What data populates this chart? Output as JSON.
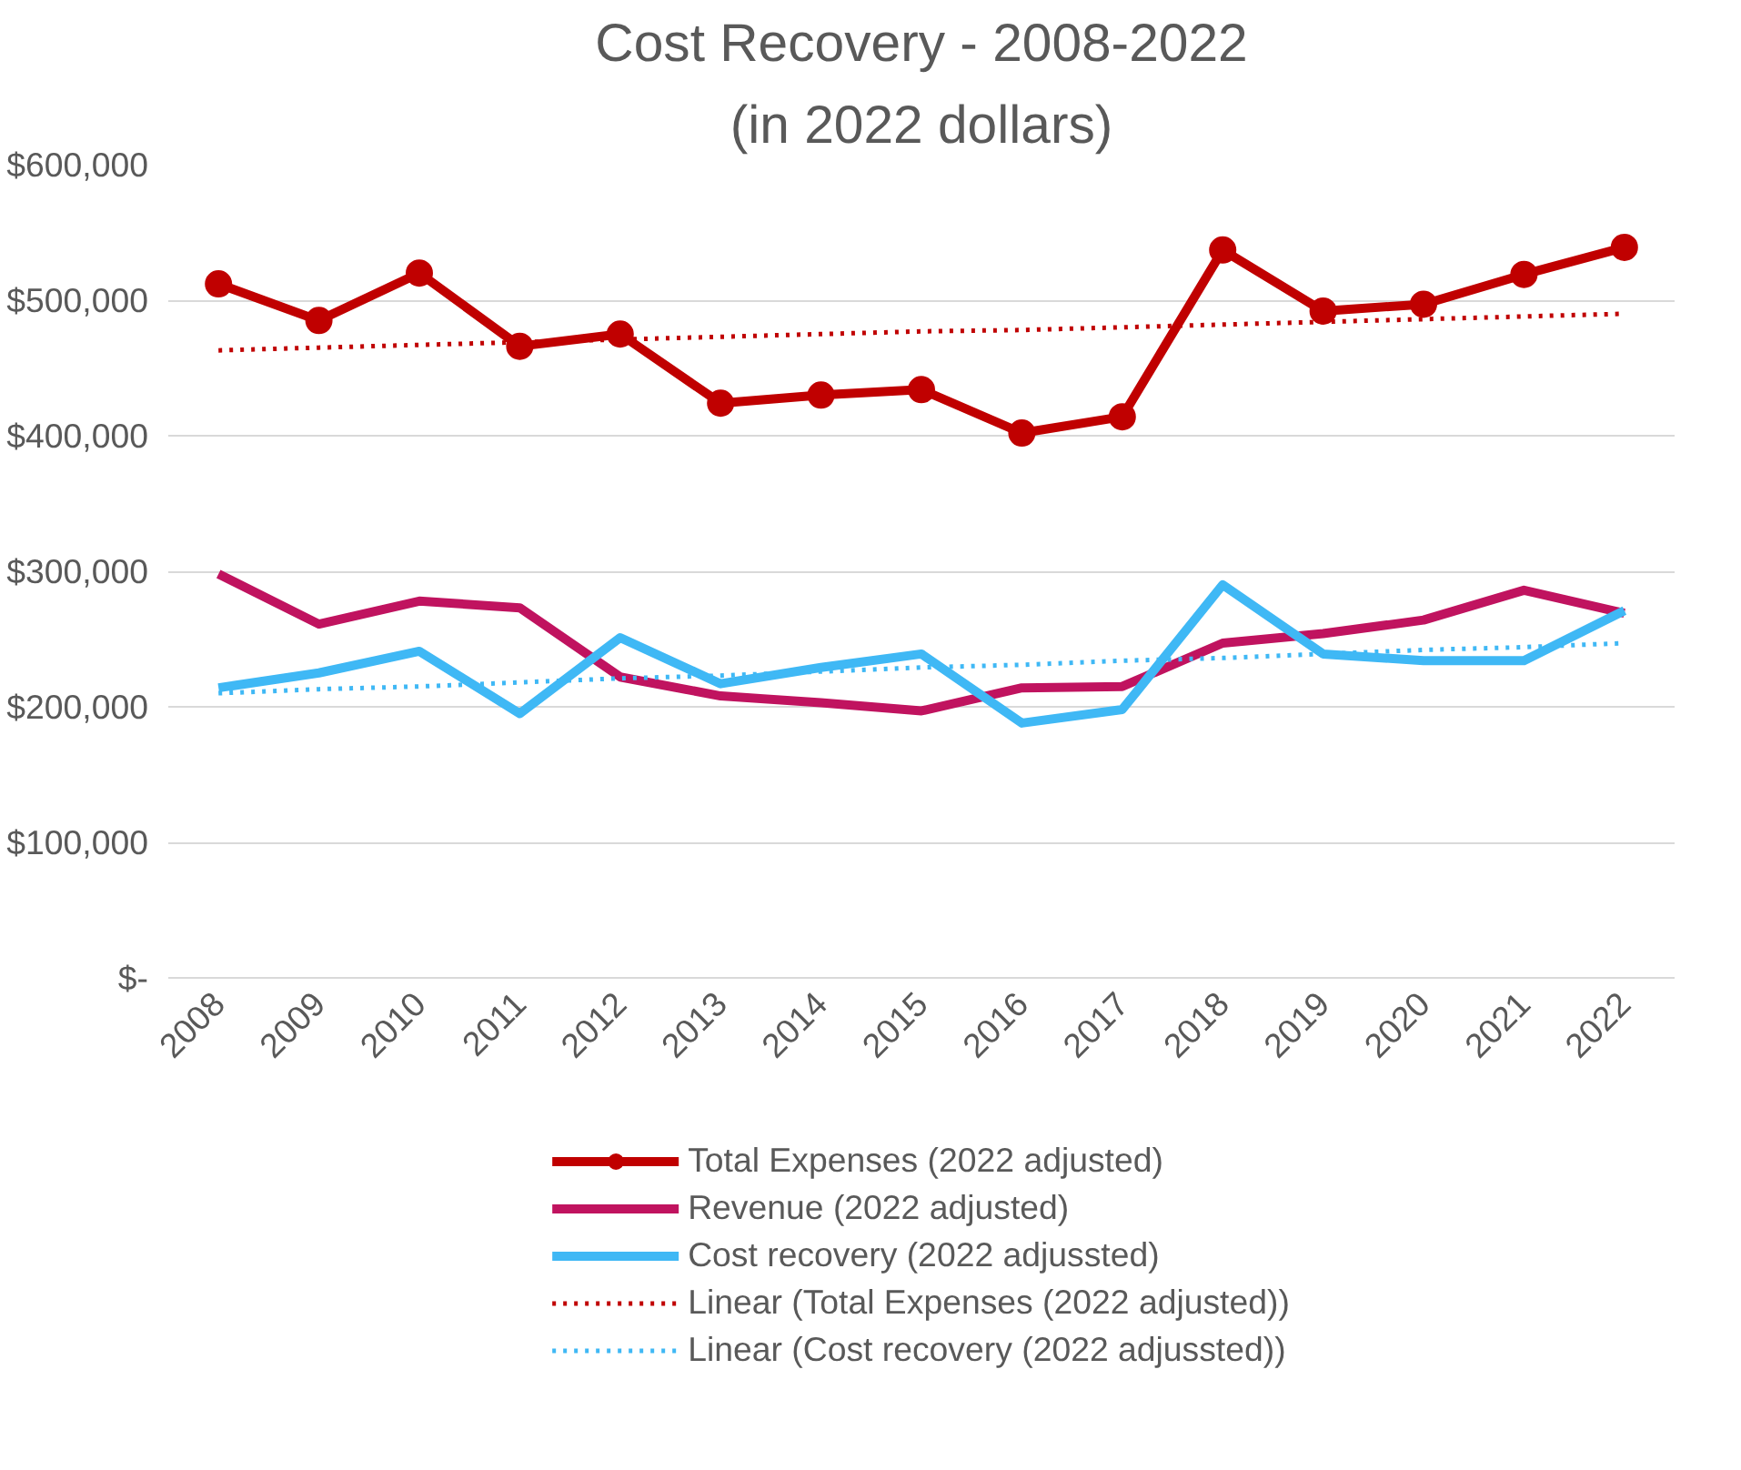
{
  "chart_data": {
    "type": "line",
    "title": "Cost Recovery - 2008-2022",
    "subtitle": "(in 2022 dollars)",
    "categories": [
      "2008",
      "2009",
      "2010",
      "2011",
      "2012",
      "2013",
      "2014",
      "2015",
      "2016",
      "2017",
      "2018",
      "2019",
      "2020",
      "2021",
      "2022"
    ],
    "series": [
      {
        "name": "Total Expenses (2022 adjusted)",
        "color": "#c00000",
        "marker": "circle",
        "line_style": "solid",
        "values": [
          512000,
          485000,
          520000,
          466000,
          475000,
          424000,
          430000,
          434000,
          402000,
          414000,
          537000,
          492000,
          497000,
          519000,
          539000
        ]
      },
      {
        "name": "Revenue (2022 adjusted)",
        "color": "#c0135f",
        "line_style": "solid",
        "values": [
          298000,
          261000,
          278000,
          273000,
          222000,
          208000,
          203000,
          197000,
          214000,
          215000,
          247000,
          254000,
          264000,
          286000,
          269000
        ]
      },
      {
        "name": "Cost recovery (2022 adjussted)",
        "color": "#3fb8f5",
        "line_style": "solid",
        "values": [
          214000,
          225000,
          241000,
          195000,
          251000,
          217000,
          229000,
          239000,
          188000,
          198000,
          290000,
          239000,
          234000,
          234000,
          271000
        ]
      },
      {
        "name": "Linear (Total Expenses (2022 adjusted))",
        "color": "#c00000",
        "line_style": "dotted",
        "values": [
          463000,
          465000,
          467000,
          469000,
          471000,
          473000,
          475000,
          477000,
          478000,
          480000,
          482000,
          484000,
          486000,
          488000,
          490000
        ]
      },
      {
        "name": "Linear (Cost recovery (2022 adjussted))",
        "color": "#3fb8f5",
        "line_style": "dotted",
        "values": [
          210000,
          213000,
          215000,
          218000,
          221000,
          223000,
          226000,
          229000,
          231000,
          234000,
          236000,
          239000,
          242000,
          244000,
          247000
        ]
      }
    ],
    "ylim": [
      0,
      600000
    ],
    "yticks": [
      {
        "value": 0,
        "label": "$-"
      },
      {
        "value": 100000,
        "label": "$100,000"
      },
      {
        "value": 200000,
        "label": "$200,000"
      },
      {
        "value": 300000,
        "label": "$300,000"
      },
      {
        "value": 400000,
        "label": "$400,000"
      },
      {
        "value": 500000,
        "label": "$500,000"
      },
      {
        "value": 600000,
        "label": "$600,000"
      }
    ],
    "grid": "y",
    "legend": "bottom"
  }
}
